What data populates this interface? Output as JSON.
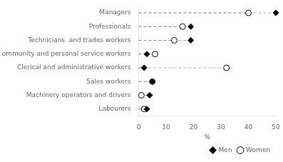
{
  "chart_data": {
    "type": "dot",
    "orientation": "horizontal",
    "categories": [
      "Managers",
      "Professionals",
      "Technicians  and trades workers",
      "Community and personal service workers",
      "Clerical and administrative workers",
      "Sales workers",
      "Machinery operators and drivers",
      "Labourers"
    ],
    "series": [
      {
        "name": "Men",
        "color": "black",
        "marker": "diamond",
        "values": [
          50,
          19,
          19,
          3,
          2,
          5,
          4,
          3
        ]
      },
      {
        "name": "Women",
        "color": "white",
        "marker": "circle",
        "values": [
          40,
          16,
          13,
          6,
          32,
          5,
          1,
          2
        ]
      }
    ],
    "xlabel": "%",
    "xlim": [
      0,
      50
    ],
    "xticks": [
      0,
      10,
      20,
      30,
      40,
      50
    ],
    "grid": false,
    "legend": "lower right"
  }
}
